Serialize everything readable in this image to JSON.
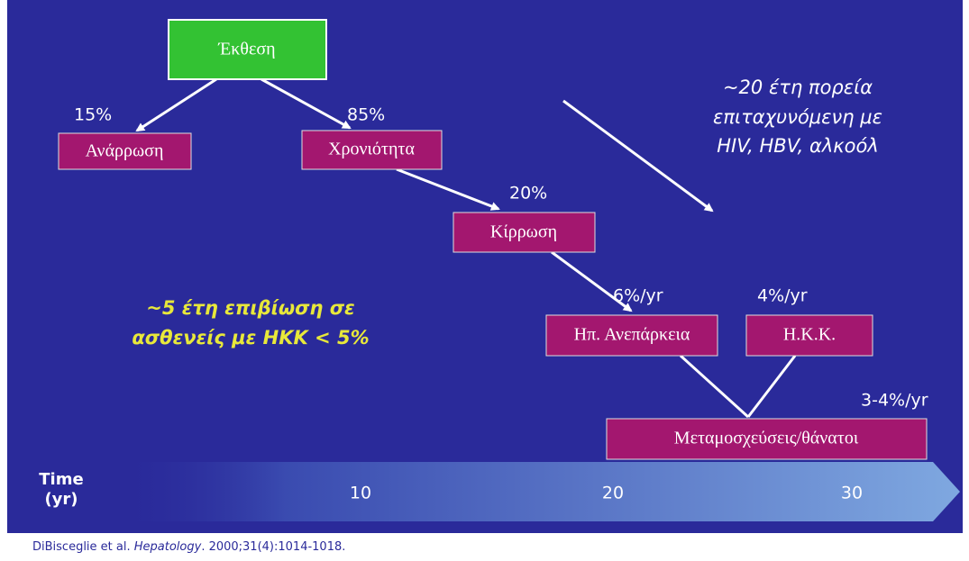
{
  "nodes": [
    {
      "label": "Έκθεση"
    },
    {
      "label": "Ανάρρωση"
    },
    {
      "label": "Χρονιότητα"
    },
    {
      "label": "Κίρρωση"
    },
    {
      "label": "Ηπ. Ανεπάρκεια"
    },
    {
      "label": "Η.Κ.Κ."
    },
    {
      "label": "Μεταμοσχεύσεις/θάνατοι"
    }
  ],
  "edge_labels": [
    "15%",
    "85%",
    "20%",
    "6%/yr",
    "4%/yr",
    "3-4%/yr"
  ],
  "note_right": [
    "~20 έτη πορεία",
    "επιταχυνόμενη με",
    "HIV, HBV, αλκοόλ"
  ],
  "note_left": [
    "~5 έτη επιβίωση σε",
    "ασθενείς με ΗΚΚ < 5%"
  ],
  "timeline": {
    "title": [
      "Time",
      "(yr)"
    ],
    "ticks": [
      "10",
      "20",
      "30"
    ]
  },
  "citation": {
    "authors": "DiBisceglie et al. ",
    "journal": "Hepatology",
    "details": ". 2000;31(4):1014-1018."
  }
}
